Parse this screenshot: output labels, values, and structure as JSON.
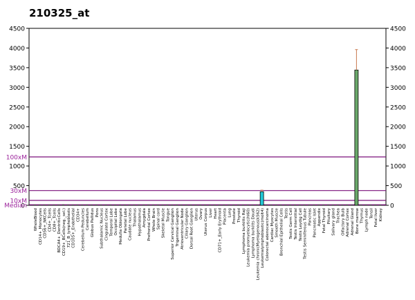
{
  "chart_data": {
    "type": "bar",
    "title": "210325_at",
    "ylim": [
      0,
      4500
    ],
    "y_ticks_left": [
      "0",
      "500",
      "1000",
      "1500",
      "2000",
      "2500",
      "3000",
      "3500",
      "4000",
      "4500"
    ],
    "y_ticks_right": [
      "0",
      "500",
      "1000",
      "1500",
      "2000",
      "2500",
      "3000",
      "3500",
      "4000",
      "4500"
    ],
    "y_tick_values": [
      0,
      500,
      1000,
      1500,
      2000,
      2500,
      3000,
      3500,
      4000,
      4500
    ],
    "reference_lines": [
      {
        "label": "100xM",
        "value": 1230
      },
      {
        "label": "30xM",
        "value": 375
      },
      {
        "label": "10xM",
        "value": 125
      },
      {
        "label": "Median",
        "value": 13
      }
    ],
    "categories": [
      "WholeBlood",
      "CD14+_Monocytes",
      "CD56+_NKCells",
      "CD4+_Tcells",
      "CD8+_Tcells",
      "BDCA4+_DentriticCells",
      "CD19+_BCells(neg._sel.)",
      "721_B_lymphoblasts",
      "CD105+_Endothelial",
      "CD34+",
      "Cerebellum Peduncles",
      "Cerebellum",
      "Globus Pallidus",
      "Pons",
      "Subthalamic Nucleus",
      "Cingulate Cortex",
      "Temporal Lobe",
      "Occipital Lobe",
      "Medulla Oblongata",
      "Parietal Lobe",
      "Caudate nucleus",
      "Thalamus",
      "Hypothalamus",
      "Amygdala",
      "Prefrontal Cortex",
      "Whole Brain",
      "Spinal cord",
      "Skeletal Muscle",
      "Tongue",
      "Superior Cervical Ganglion",
      "Trigeminal Ganglion",
      "Atrioventricular Node",
      "Ciliary Ganglion",
      "Dorsal Root Ganglion",
      "Uterus",
      "Ovary",
      "Uterus Corpus",
      "Liver",
      "Heart",
      "CD71+_Early Erythroid",
      "Placenta",
      "Lung",
      "Prostate",
      "Thyroid",
      "Lymphoma burkitts Raji",
      "Leukemia promyelocytic(hl60)",
      "Lymphoma burkitts Daudi",
      "Leukemia chronicMyelogenous(k562)",
      "Leukemialymphoblastic(molt4)",
      "Colorectal adenocarcinoma",
      "Cardiac Myocytes",
      "Smooth Muscle",
      "Bronchial Epithelial Cells",
      "Testis",
      "Testis Germ Cell",
      "Testis Interstitial",
      "Testis Leydig Cell",
      "Testis Seminiferous Tubule",
      "Pancreas",
      "Pancreatic Islet",
      "Appendix",
      "Fetal Thyroid",
      "Pituitary",
      "Salivary gland",
      "Trachea",
      "Olfactory Bulb",
      "Adrenal Cortex",
      "Adrenal Gland",
      "Bone marrow",
      "Thymus",
      "Lymph node",
      "Tonsil",
      "Fetal liver",
      "Kidney"
    ],
    "values": [
      5,
      5,
      5,
      5,
      5,
      5,
      22,
      5,
      5,
      5,
      5,
      5,
      5,
      5,
      5,
      5,
      5,
      5,
      18,
      5,
      5,
      5,
      5,
      5,
      5,
      5,
      5,
      5,
      5,
      15,
      5,
      5,
      5,
      5,
      5,
      5,
      5,
      5,
      5,
      5,
      5,
      5,
      5,
      5,
      5,
      5,
      5,
      5,
      345,
      5,
      5,
      5,
      5,
      5,
      5,
      5,
      5,
      5,
      5,
      5,
      5,
      5,
      5,
      5,
      5,
      5,
      5,
      5,
      3440,
      5,
      5,
      5,
      5,
      5
    ],
    "errors": [
      0,
      0,
      0,
      0,
      0,
      0,
      0,
      0,
      0,
      0,
      0,
      0,
      0,
      0,
      0,
      0,
      0,
      0,
      0,
      0,
      0,
      0,
      0,
      0,
      0,
      0,
      0,
      0,
      0,
      0,
      0,
      0,
      0,
      0,
      0,
      0,
      0,
      0,
      0,
      0,
      0,
      0,
      0,
      0,
      0,
      0,
      0,
      0,
      40,
      0,
      0,
      0,
      0,
      0,
      0,
      0,
      0,
      0,
      0,
      0,
      0,
      0,
      0,
      0,
      0,
      0,
      0,
      0,
      520,
      0,
      0,
      0,
      0,
      0
    ],
    "colors": {
      "default": "#404040",
      "cyan_bar": "#22c8d8",
      "green_bar": "#6aa86a",
      "error": "#c8784e",
      "ref_line": "#7a0f7a",
      "ref_label": "#9a1f9a"
    }
  }
}
